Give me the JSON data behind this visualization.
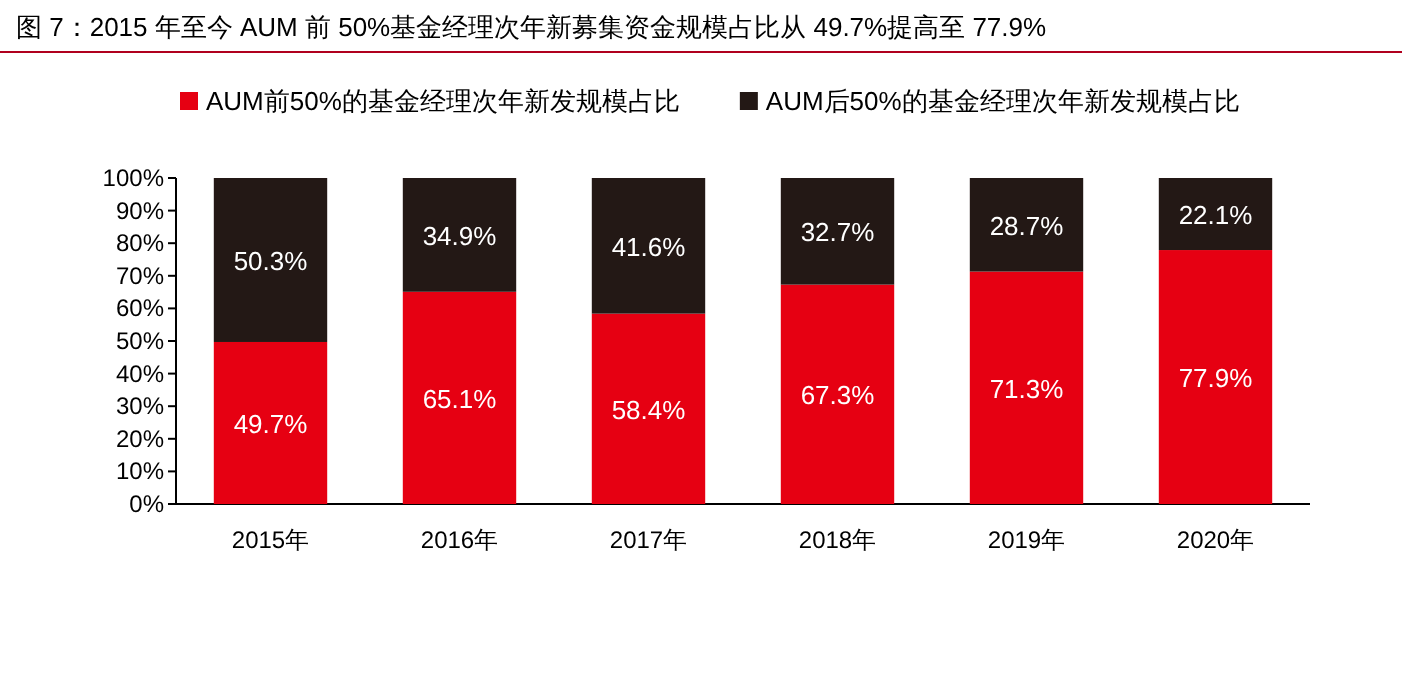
{
  "chart_data": {
    "type": "bar",
    "stacked": true,
    "title": "图 7：2015 年至今 AUM 前 50%基金经理次年新募集资金规模占比从 49.7%提高至 77.9%",
    "categories": [
      "2015年",
      "2016年",
      "2017年",
      "2018年",
      "2019年",
      "2020年"
    ],
    "series": [
      {
        "name": "AUM前50%的基金经理次年新发规模占比",
        "color": "#e60012",
        "values": [
          49.7,
          65.1,
          58.4,
          67.3,
          71.3,
          77.9
        ],
        "value_labels": [
          "49.7%",
          "65.1%",
          "58.4%",
          "67.3%",
          "71.3%",
          "77.9%"
        ]
      },
      {
        "name": "AUM后50%的基金经理次年新发规模占比",
        "color": "#231815",
        "values": [
          50.3,
          34.9,
          41.6,
          32.7,
          28.7,
          22.1
        ],
        "value_labels": [
          "50.3%",
          "34.9%",
          "41.6%",
          "32.7%",
          "28.7%",
          "22.1%"
        ]
      }
    ],
    "ylim": [
      0,
      100
    ],
    "yticks": [
      {
        "value": 0,
        "label": "0%"
      },
      {
        "value": 10,
        "label": "10%"
      },
      {
        "value": 20,
        "label": "20%"
      },
      {
        "value": 30,
        "label": "30%"
      },
      {
        "value": 40,
        "label": "40%"
      },
      {
        "value": 50,
        "label": "50%"
      },
      {
        "value": 60,
        "label": "60%"
      },
      {
        "value": 70,
        "label": "70%"
      },
      {
        "value": 80,
        "label": "80%"
      },
      {
        "value": 90,
        "label": "90%"
      },
      {
        "value": 100,
        "label": "100%"
      }
    ],
    "legend": "top",
    "grid": false
  }
}
